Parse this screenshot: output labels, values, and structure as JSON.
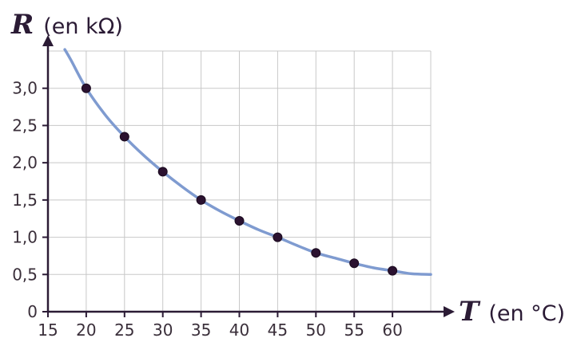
{
  "chart_data": {
    "type": "scatter",
    "x_variable": "T",
    "x_unit": "(en °C)",
    "y_variable": "R",
    "y_unit": "(en kΩ)",
    "x_ticks": [
      "15",
      "20",
      "25",
      "30",
      "35",
      "40",
      "45",
      "50",
      "55",
      "60"
    ],
    "y_ticks": [
      "0",
      "0,5",
      "1,0",
      "1,5",
      "2,0",
      "2,5",
      "3,0"
    ],
    "xlim": [
      15,
      65
    ],
    "ylim": [
      0,
      3.5
    ],
    "grid": true,
    "points": {
      "x": [
        20,
        25,
        30,
        35,
        40,
        45,
        50,
        55,
        60
      ],
      "y": [
        3.0,
        2.35,
        1.88,
        1.5,
        1.22,
        1.0,
        0.79,
        0.65,
        0.55
      ]
    },
    "curve": {
      "x": [
        17.2,
        18,
        20,
        22.5,
        25,
        27.5,
        30,
        32.5,
        35,
        37.5,
        40,
        42.5,
        45,
        47.5,
        50,
        52.5,
        55,
        57.5,
        60,
        62.5,
        65
      ],
      "y": [
        3.52,
        3.38,
        3.0,
        2.64,
        2.35,
        2.1,
        1.88,
        1.68,
        1.5,
        1.35,
        1.22,
        1.1,
        1.0,
        0.89,
        0.79,
        0.72,
        0.65,
        0.59,
        0.55,
        0.51,
        0.5
      ]
    },
    "colors": {
      "curve": "#7f9bd0",
      "points": "#2b1230",
      "grid": "#c8c8c8",
      "axis": "#2b1b35"
    }
  }
}
